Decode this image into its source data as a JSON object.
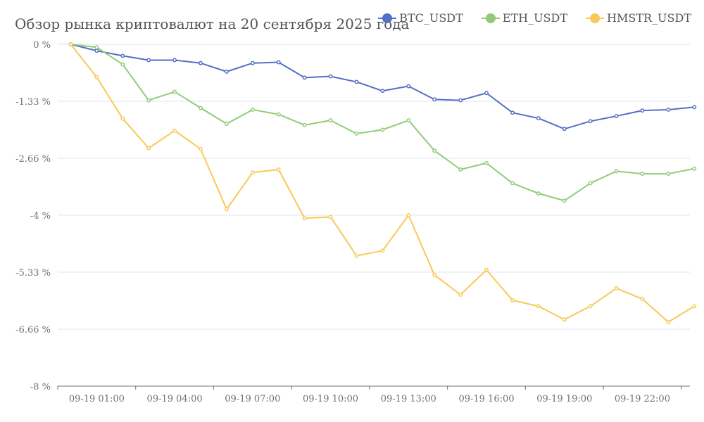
{
  "chart_data": {
    "type": "line",
    "title": "Обзор рынка криптовалют на 20 сентября 2025 года",
    "y_tick_labels": [
      "0 %",
      "-1.33 %",
      "-2.66 %",
      "-4 %",
      "-5.33 %",
      "-6.66 %",
      "-8 %"
    ],
    "ylim": [
      -8,
      0
    ],
    "x_tick_labels": [
      "09-19 01:00",
      "09-19 04:00",
      "09-19 07:00",
      "09-19 10:00",
      "09-19 13:00",
      "09-19 16:00",
      "09-19 19:00",
      "09-19 22:00"
    ],
    "x_count": 25,
    "grid": true,
    "legend_position": "top-right",
    "series": [
      {
        "name": "BTC_USDT",
        "color": "#5470c6",
        "values": [
          0,
          -0.15,
          -0.27,
          -0.37,
          -0.37,
          -0.44,
          -0.64,
          -0.44,
          -0.42,
          -0.78,
          -0.75,
          -0.88,
          -1.09,
          -0.98,
          -1.29,
          -1.31,
          -1.14,
          -1.6,
          -1.73,
          -1.98,
          -1.8,
          -1.68,
          -1.55,
          -1.53,
          -1.47
        ]
      },
      {
        "name": "ETH_USDT",
        "color": "#91cc75",
        "values": [
          0,
          -0.07,
          -0.47,
          -1.31,
          -1.11,
          -1.49,
          -1.86,
          -1.53,
          -1.64,
          -1.89,
          -1.78,
          -2.09,
          -2.0,
          -1.78,
          -2.49,
          -2.93,
          -2.78,
          -3.25,
          -3.49,
          -3.66,
          -3.25,
          -2.97,
          -3.03,
          -3.03,
          -2.91
        ]
      },
      {
        "name": "HMSTR_USDT",
        "color": "#fac858",
        "values": [
          0,
          -0.77,
          -1.74,
          -2.43,
          -2.02,
          -2.45,
          -3.86,
          -3.0,
          -2.93,
          -4.07,
          -4.04,
          -4.95,
          -4.83,
          -4.0,
          -5.4,
          -5.86,
          -5.28,
          -5.99,
          -6.13,
          -6.44,
          -6.13,
          -5.71,
          -5.96,
          -6.5,
          -6.13
        ]
      }
    ]
  }
}
